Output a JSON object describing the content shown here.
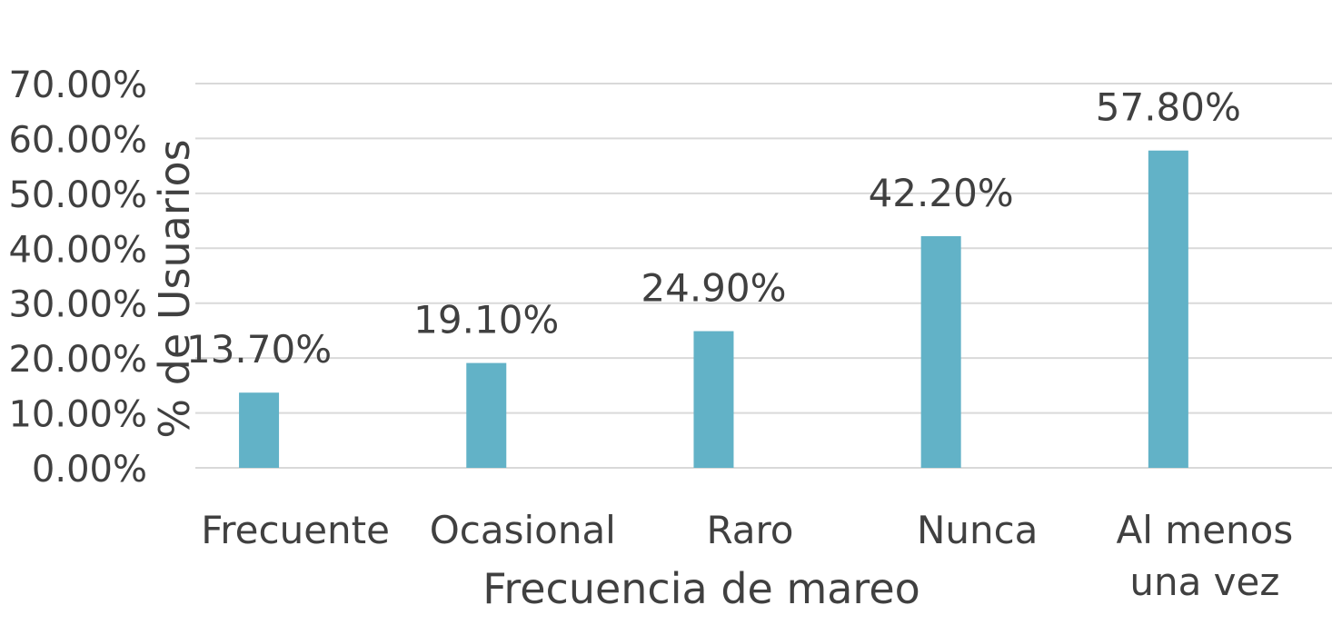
{
  "chart_data": {
    "type": "bar",
    "title": "",
    "xlabel": "Frecuencia de mareo",
    "ylabel": "% de Usuarios",
    "categories": [
      "Frecuente",
      "Ocasional",
      "Raro",
      "Nunca",
      "Al menos una vez"
    ],
    "category_lines": [
      [
        "Frecuente"
      ],
      [
        "Ocasional"
      ],
      [
        "Raro"
      ],
      [
        "Nunca"
      ],
      [
        "Al menos",
        "una vez"
      ]
    ],
    "values": [
      13.7,
      19.1,
      24.9,
      42.2,
      57.8
    ],
    "data_labels": [
      "13.70%",
      "19.10%",
      "24.90%",
      "42.20%",
      "57.80%"
    ],
    "y_ticks": [
      0,
      10,
      20,
      30,
      40,
      50,
      60,
      70
    ],
    "y_tick_labels": [
      "0.00%",
      "10.00%",
      "20.00%",
      "30.00%",
      "40.00%",
      "50.00%",
      "60.00%",
      "70.00%"
    ],
    "ylim": [
      0,
      70
    ],
    "grid": true,
    "legend": "none",
    "colors": {
      "bar": "#62B2C7",
      "grid": "#D9D9D9",
      "text": "#404040"
    }
  }
}
